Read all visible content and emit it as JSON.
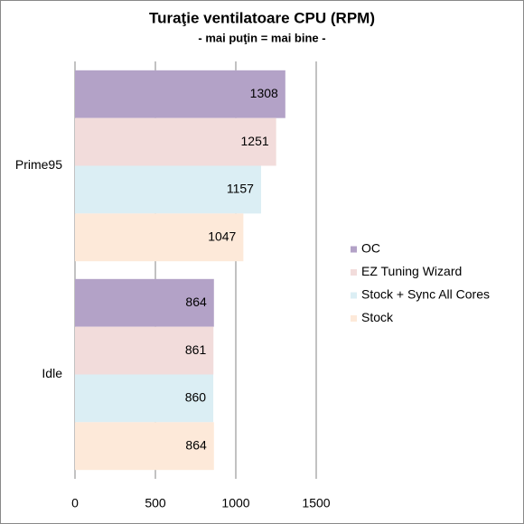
{
  "chart_data": {
    "type": "barh",
    "title": "Turaţie ventilatoare CPU (RPM)",
    "subtitle": "- mai puţin = mai bine -",
    "categories": [
      "Prime95",
      "Idle"
    ],
    "series": [
      {
        "name": "OC",
        "color": "#b3a2c7",
        "values": [
          1308,
          864
        ]
      },
      {
        "name": "EZ Tuning Wizard",
        "color": "#f2dcdb",
        "values": [
          1251,
          861
        ]
      },
      {
        "name": "Stock + Sync All Cores",
        "color": "#dbeef4",
        "values": [
          1157,
          860
        ]
      },
      {
        "name": "Stock",
        "color": "#fde9d9",
        "values": [
          1047,
          864
        ]
      }
    ],
    "xlim": [
      0,
      1500
    ],
    "xticks": [
      0,
      500,
      1000,
      1500
    ],
    "grid": true,
    "legend": "right"
  }
}
